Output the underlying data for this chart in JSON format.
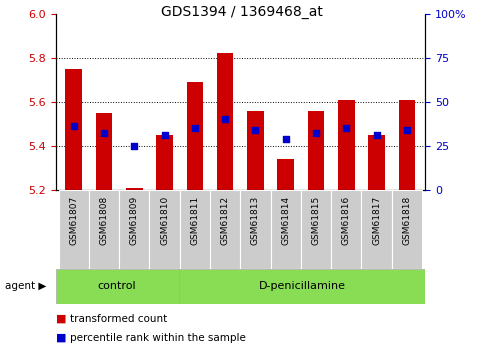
{
  "title": "GDS1394 / 1369468_at",
  "samples": [
    "GSM61807",
    "GSM61808",
    "GSM61809",
    "GSM61810",
    "GSM61811",
    "GSM61812",
    "GSM61813",
    "GSM61814",
    "GSM61815",
    "GSM61816",
    "GSM61817",
    "GSM61818"
  ],
  "transformed_count": [
    5.75,
    5.55,
    5.21,
    5.45,
    5.69,
    5.82,
    5.56,
    5.34,
    5.56,
    5.61,
    5.45,
    5.61
  ],
  "percentile_rank": [
    5.49,
    5.46,
    5.4,
    5.45,
    5.48,
    5.52,
    5.47,
    5.43,
    5.46,
    5.48,
    5.45,
    5.47
  ],
  "bar_bottom": 5.2,
  "ylim": [
    5.2,
    6.0
  ],
  "yticks_left": [
    5.2,
    5.4,
    5.6,
    5.8,
    6.0
  ],
  "yticks_right_labels": [
    "0",
    "25",
    "50",
    "75",
    "100%"
  ],
  "yticks_right_pos": [
    5.2,
    5.4,
    5.6,
    5.8,
    6.0
  ],
  "bar_color": "#cc0000",
  "dot_color": "#0000cc",
  "n_control": 4,
  "n_treatment": 8,
  "control_label": "control",
  "treatment_label": "D-penicillamine",
  "agent_label": "agent",
  "legend_bar_label": "transformed count",
  "legend_dot_label": "percentile rank within the sample",
  "label_color_left": "#cc0000",
  "label_color_right": "#0000cc",
  "tick_bg": "#cccccc",
  "group_bg": "#88dd55",
  "title_fontsize": 10
}
